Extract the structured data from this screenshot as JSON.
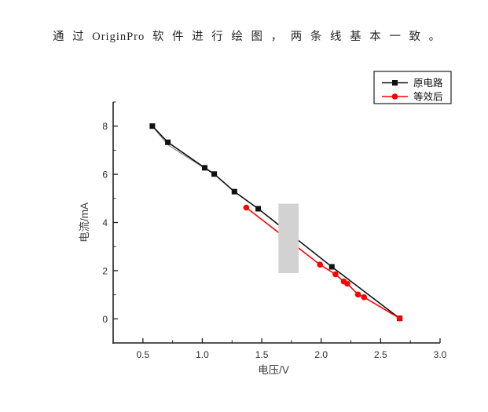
{
  "page": {
    "background": "#ffffff"
  },
  "caption": {
    "text": "通 过 OriginPro 软 件 进 行 绘 图 ， 两 条 线 基 本 一 致 。"
  },
  "chart_data": {
    "type": "line",
    "title": "",
    "xlabel": "电压/V",
    "ylabel": "电流/mA",
    "xlim": [
      0.25,
      3.0
    ],
    "ylim": [
      -1,
      9
    ],
    "grid": false,
    "x_major_ticks": [
      0.5,
      1.0,
      1.5,
      2.0,
      2.5,
      3.0
    ],
    "x_tick_labels": [
      "0.5",
      "1.0",
      "1.5",
      "2.0",
      "2.5",
      "3.0"
    ],
    "x_minor_ticks": [
      0.75,
      1.25,
      1.75,
      2.25,
      2.75
    ],
    "y_major_ticks": [
      0,
      2,
      4,
      6,
      8
    ],
    "y_tick_labels": [
      "0",
      "2",
      "4",
      "6",
      "8"
    ],
    "y_minor_ticks": [
      1,
      3,
      5,
      7,
      9
    ],
    "axis_color": "#1f1f1f",
    "tick_label_color": "#2e2e2e",
    "axis_title_color": "#3d3d3d",
    "legend": {
      "position": "top-right",
      "border_color": "#1f1f1f"
    },
    "series": [
      {
        "name": "原电路",
        "color": "#111111",
        "marker": "square",
        "points": [
          [
            0.58,
            8.0
          ],
          [
            0.71,
            7.33
          ],
          [
            1.02,
            6.27
          ],
          [
            1.1,
            6.01
          ],
          [
            1.27,
            5.28
          ],
          [
            1.47,
            4.57
          ],
          [
            2.09,
            2.16
          ],
          [
            2.66,
            0.02
          ]
        ]
      },
      {
        "name": "等效后",
        "color": "#fe0000",
        "marker": "circle",
        "points": [
          [
            1.37,
            4.62
          ],
          [
            1.99,
            2.25
          ],
          [
            2.12,
            1.85
          ],
          [
            2.19,
            1.55
          ],
          [
            2.22,
            1.46
          ],
          [
            2.31,
            1.01
          ],
          [
            2.36,
            0.9
          ],
          [
            2.66,
            0.02
          ]
        ]
      }
    ],
    "annotations": {
      "overlay_box": {
        "x_range": [
          1.64,
          1.81
        ],
        "y_range": [
          1.9,
          4.78
        ],
        "color": "#d2d2d2"
      },
      "double_line_segment": {
        "color": "#8a8a8a",
        "points": [
          [
            0.58,
            8.0
          ],
          [
            0.71,
            7.22
          ],
          [
            1.1,
            6.0
          ]
        ]
      }
    }
  }
}
